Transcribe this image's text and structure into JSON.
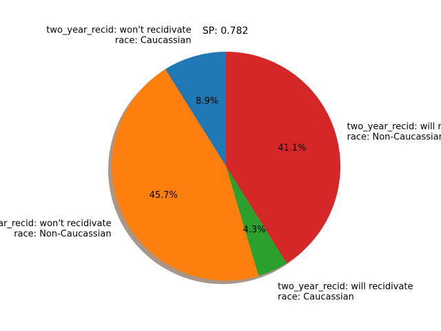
{
  "chart_data": {
    "type": "pie",
    "title": "SP: 0.782",
    "shadow": true,
    "start_angle_deg": 90,
    "direction": "counterclockwise",
    "slices": [
      {
        "label_lines": [
          "two_year_recid: won't recidivate",
          "race: Caucassian"
        ],
        "value": 8.9,
        "pct_label": "8.9%",
        "color": "#1f77b4"
      },
      {
        "label_lines": [
          "two_year_recid: won't recidivate",
          "race: Non-Caucassian"
        ],
        "value": 45.7,
        "pct_label": "45.7%",
        "color": "#ff7f0e"
      },
      {
        "label_lines": [
          "two_year_recid: will recidivate",
          "race: Caucassian"
        ],
        "value": 4.3,
        "pct_label": "4.3%",
        "color": "#2ca02c"
      },
      {
        "label_lines": [
          "two_year_recid: will recidivate",
          "race: Non-Caucassian"
        ],
        "value": 41.1,
        "pct_label": "41.1%",
        "color": "#d62728"
      }
    ]
  }
}
